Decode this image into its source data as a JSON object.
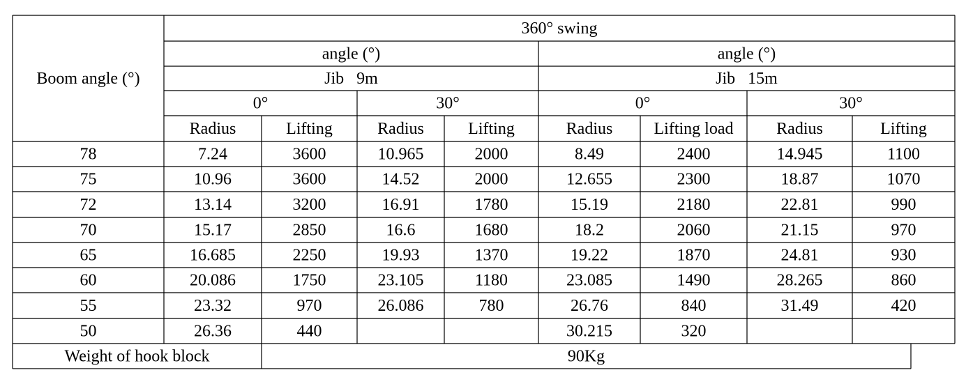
{
  "table": {
    "corner": "Boom angle (°)",
    "swing": "360° swing",
    "groups": [
      {
        "angle": "angle (°)",
        "jib": "Jib   9m",
        "sub": [
          {
            "angle": "0°",
            "cols": [
              "Radius",
              "Lifting"
            ]
          },
          {
            "angle": "30°",
            "cols": [
              "Radius",
              "Lifting"
            ]
          }
        ]
      },
      {
        "angle": "angle (°)",
        "jib": "Jib   15m",
        "sub": [
          {
            "angle": "0°",
            "cols": [
              "Radius",
              "Lifting load"
            ]
          },
          {
            "angle": "30°",
            "cols": [
              "Radius",
              "Lifting"
            ]
          }
        ]
      }
    ],
    "rows": [
      [
        "78",
        "7.24",
        "3600",
        "10.965",
        "2000",
        "8.49",
        "2400",
        "14.945",
        "1100"
      ],
      [
        "75",
        "10.96",
        "3600",
        "14.52",
        "2000",
        "12.655",
        "2300",
        "18.87",
        "1070"
      ],
      [
        "72",
        "13.14",
        "3200",
        "16.91",
        "1780",
        "15.19",
        "2180",
        "22.81",
        "990"
      ],
      [
        "70",
        "15.17",
        "2850",
        "16.6",
        "1680",
        "18.2",
        "2060",
        "21.15",
        "970"
      ],
      [
        "65",
        "16.685",
        "2250",
        "19.93",
        "1370",
        "19.22",
        "1870",
        "24.81",
        "930"
      ],
      [
        "60",
        "20.086",
        "1750",
        "23.105",
        "1180",
        "23.085",
        "1490",
        "28.265",
        "860"
      ],
      [
        "55",
        "23.32",
        "970",
        "26.086",
        "780",
        "26.76",
        "840",
        "31.49",
        "420"
      ],
      [
        "50",
        "26.36",
        "440",
        null,
        null,
        "30.215",
        "320",
        null,
        null
      ]
    ],
    "footer": {
      "label": "Weight of hook block",
      "value": "90Kg"
    }
  }
}
